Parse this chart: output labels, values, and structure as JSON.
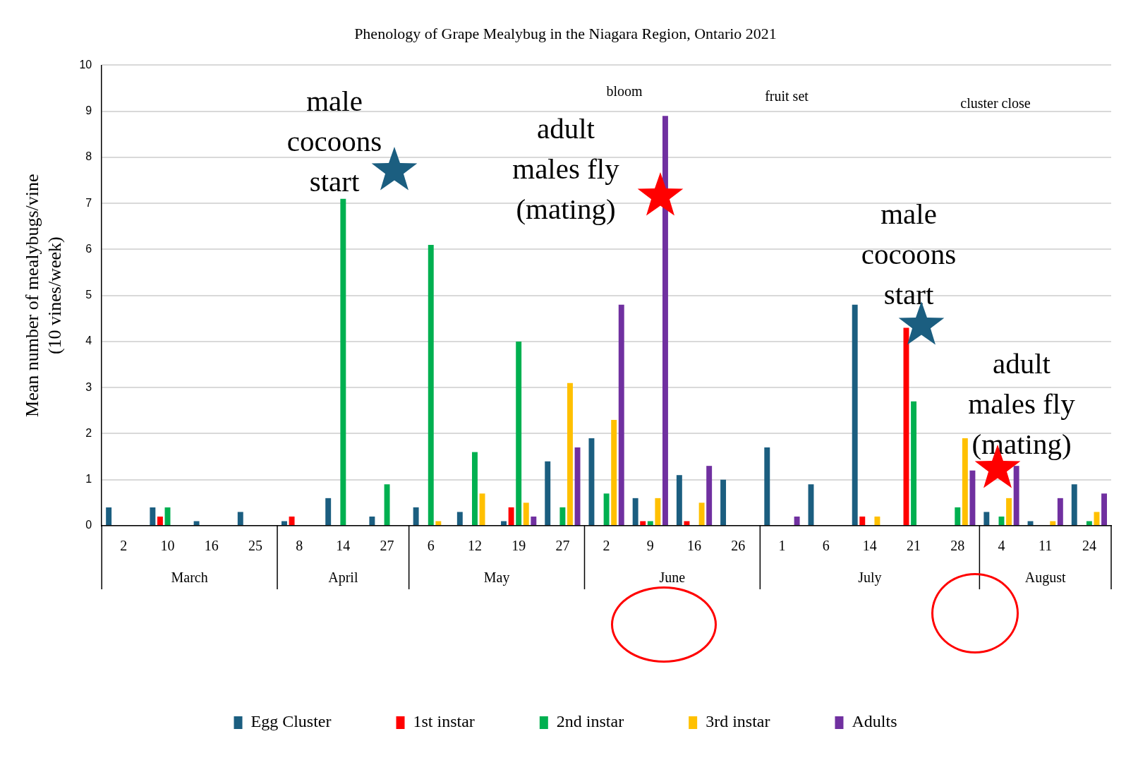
{
  "chart_data": {
    "type": "bar",
    "title": "Phenology of Grape Mealybug in the Niagara Region, Ontario 2021",
    "ylabel": "Mean number of mealybugs/vine (10 vines/week)",
    "categories": [
      "2",
      "10",
      "16",
      "25",
      "8",
      "14",
      "27",
      "6",
      "12",
      "19",
      "27",
      "2",
      "9",
      "16",
      "26",
      "1",
      "6",
      "14",
      "21",
      "28",
      "4",
      "11",
      "24"
    ],
    "series": [
      {
        "name": "Egg Cluster",
        "color": "#1b5e80",
        "values": [
          0.4,
          0.4,
          0.1,
          0.3,
          0.1,
          0.6,
          0.2,
          0.4,
          0.3,
          0.1,
          1.4,
          1.9,
          0.6,
          1.1,
          1.0,
          1.7,
          0.9,
          4.8,
          0,
          0,
          0.3,
          0.1,
          0.9
        ]
      },
      {
        "name": "1st instar",
        "color": "#ff0000",
        "values": [
          0,
          0.2,
          0,
          0,
          0.2,
          0,
          0,
          0,
          0,
          0.4,
          0,
          0,
          0.1,
          0.1,
          0,
          0,
          0,
          0.2,
          4.3,
          0,
          0,
          0,
          0
        ]
      },
      {
        "name": "2nd instar",
        "color": "#00b050",
        "values": [
          0,
          0.4,
          0,
          0,
          0,
          7.1,
          0.9,
          6.1,
          1.6,
          4.0,
          0.4,
          0.7,
          0.1,
          0,
          0,
          0,
          0,
          0,
          2.7,
          0.4,
          0.2,
          0,
          0.1
        ]
      },
      {
        "name": "3rd instar",
        "color": "#ffc000",
        "values": [
          0,
          0,
          0,
          0,
          0,
          0,
          0,
          0.1,
          0.7,
          0.5,
          3.1,
          2.3,
          0.6,
          0.5,
          0,
          0,
          0,
          0.2,
          0,
          1.9,
          0.6,
          0.1,
          0.3
        ]
      },
      {
        "name": "Adults",
        "color": "#7030a0",
        "values": [
          0,
          0,
          0,
          0,
          0,
          0,
          0,
          0,
          0,
          0.2,
          1.7,
          4.8,
          8.9,
          1.3,
          0,
          0.2,
          0,
          0,
          0,
          1.2,
          1.3,
          0.6,
          0.7
        ]
      }
    ],
    "ylim": [
      0,
      10
    ],
    "yticks": [
      0,
      1,
      2,
      3,
      4,
      5,
      6,
      7,
      8,
      9,
      10
    ],
    "grid": "y",
    "legend": "bottom",
    "annotations": [
      "March",
      "April",
      "May",
      "June",
      "July",
      "August",
      "bloom",
      "fruit set",
      "cluster close",
      "male cocoons start",
      "adult males fly (mating)",
      "male cocoons start",
      "adult males fly (mating)"
    ]
  }
}
